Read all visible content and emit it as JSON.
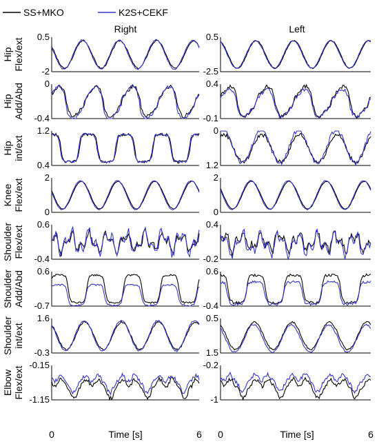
{
  "legend": {
    "entries": [
      {
        "label": "SS+MKO",
        "color": "#000000"
      },
      {
        "label": "K2S+CEKF",
        "color": "#3333cc"
      }
    ],
    "placement": "top-left"
  },
  "columns": [
    "Right",
    "Left"
  ],
  "xaxis": {
    "label": "Time [s]",
    "range": [
      0,
      6
    ],
    "ticks": [
      "0",
      "6"
    ]
  },
  "chart_data": {
    "type": "line",
    "x_range": [
      0,
      6
    ],
    "series_names": [
      "SS+MKO",
      "K2S+CEKF"
    ],
    "grid": false,
    "panels": [
      {
        "row_label": [
          "Hip",
          "Flex/ext"
        ],
        "column": "Right",
        "ylim": [
          -2,
          0.5
        ],
        "tick_top": "0.5",
        "tick_bottom": "-2",
        "cycles": 4,
        "phase": 0.8,
        "shape": "sine",
        "offset_b": 0.0,
        "amp_scale_b": 1.05,
        "noise": 0.04
      },
      {
        "row_label": [
          "Hip",
          "Flex/ext"
        ],
        "column": "Left",
        "ylim": [
          -2.5,
          0.5
        ],
        "tick_top": "0.5",
        "tick_bottom": "-2.5",
        "cycles": 4,
        "phase": 0.6,
        "shape": "sine",
        "offset_b": 0.0,
        "amp_scale_b": 1.0,
        "noise": 0.03
      },
      {
        "row_label": [
          "Hip",
          "Add/Abd"
        ],
        "column": "Right",
        "ylim": [
          -0.4,
          0
        ],
        "tick_top": "0",
        "tick_bottom": "-0.4",
        "cycles": 4,
        "phase": 0.2,
        "shape": "peaky",
        "offset_b": -0.05,
        "amp_scale_b": 1.1,
        "noise": 0.1
      },
      {
        "row_label": [
          "Hip",
          "Add/Abd"
        ],
        "column": "Left",
        "ylim": [
          -0.1,
          0.4
        ],
        "tick_top": "0.4",
        "tick_bottom": "-0.1",
        "cycles": 4,
        "phase": 0.1,
        "shape": "peaky",
        "offset_b": -0.05,
        "amp_scale_b": 0.9,
        "noise": 0.1
      },
      {
        "row_label": [
          "Hip",
          "int/ext"
        ],
        "column": "Right",
        "ylim": [
          0.4,
          1.2
        ],
        "tick_top": "1.2",
        "tick_bottom": "0.4",
        "cycles": 4,
        "phase": 0.5,
        "shape": "square",
        "offset_b": 0.0,
        "amp_scale_b": 1.0,
        "noise": 0.08
      },
      {
        "row_label": [
          "Hip",
          "int/ext"
        ],
        "column": "Left",
        "ylim": [
          1.2,
          0
        ],
        "tick_top": "0",
        "tick_bottom": "1.2",
        "cycles": 4,
        "phase": 0.3,
        "shape": "sine",
        "offset_b": 0.05,
        "amp_scale_b": 1.2,
        "noise": 0.12
      },
      {
        "row_label": [
          "Knee",
          "Flex/ext"
        ],
        "column": "Right",
        "ylim": [
          0,
          2
        ],
        "tick_top": "2",
        "tick_bottom": "0",
        "cycles": 4,
        "phase": 0.9,
        "shape": "sine",
        "offset_b": 0.0,
        "amp_scale_b": 1.05,
        "noise": 0.02
      },
      {
        "row_label": [
          "Knee",
          "Flex/ext"
        ],
        "column": "Left",
        "ylim": [
          0,
          2
        ],
        "tick_top": "2",
        "tick_bottom": "0",
        "cycles": 4,
        "phase": 0.85,
        "shape": "sine",
        "offset_b": 0.0,
        "amp_scale_b": 1.05,
        "noise": 0.02
      },
      {
        "row_label": [
          "Shoulder",
          "Flex/ext"
        ],
        "column": "Right",
        "ylim": [
          -0.4,
          0.6
        ],
        "tick_top": "0.6",
        "tick_bottom": "-0.4",
        "cycles": 8,
        "phase": 0.4,
        "shape": "weak",
        "offset_b": 0.0,
        "amp_scale_b": 1.2,
        "noise": 0.18
      },
      {
        "row_label": [
          "Shoulder",
          "Flex/ext"
        ],
        "column": "Left",
        "ylim": [
          -0.2,
          0.4
        ],
        "tick_top": "0.4",
        "tick_bottom": "-0.2",
        "cycles": 8,
        "phase": 0.2,
        "shape": "weak",
        "offset_b": -0.05,
        "amp_scale_b": 1.2,
        "noise": 0.2
      },
      {
        "row_label": [
          "Shoulder",
          "Add/Abd"
        ],
        "column": "Right",
        "ylim": [
          -0.7,
          0.6
        ],
        "tick_top": "0.6",
        "tick_bottom": "-0.7",
        "cycles": 4,
        "phase": 0.1,
        "shape": "square",
        "offset_b": -0.18,
        "amp_scale_b": 0.75,
        "noise": 0.05
      },
      {
        "row_label": [
          "Shoulder",
          "Add/Abd"
        ],
        "column": "Left",
        "ylim": [
          -0.4,
          0.6
        ],
        "tick_top": "0.6",
        "tick_bottom": "-0.4",
        "cycles": 4,
        "phase": 0.6,
        "shape": "square",
        "offset_b": -0.12,
        "amp_scale_b": 0.8,
        "noise": 0.08
      },
      {
        "row_label": [
          "Shoulder",
          "int/ext"
        ],
        "column": "Right",
        "ylim": [
          -0.3,
          1.6
        ],
        "tick_top": "1.6",
        "tick_bottom": "-0.3",
        "cycles": 4,
        "phase": 0.7,
        "shape": "sine",
        "offset_b": 0.0,
        "amp_scale_b": 1.1,
        "noise": 0.05
      },
      {
        "row_label": [
          "Shoulder",
          "int/ext"
        ],
        "column": "Left",
        "ylim": [
          1.5,
          0.5
        ],
        "tick_top": "0.5",
        "tick_bottom": "1.5",
        "cycles": 4,
        "phase": 0.7,
        "shape": "sine",
        "offset_b": -0.08,
        "amp_scale_b": 1.0,
        "noise": 0.05
      },
      {
        "row_label": [
          "Elbow",
          "Flex/ext"
        ],
        "column": "Right",
        "ylim": [
          -1.15,
          -0.15
        ],
        "tick_top": "-0.15",
        "tick_bottom": "-1.15",
        "cycles": 4,
        "phase": 0.3,
        "shape": "dips",
        "offset_b": 0.12,
        "amp_scale_b": 0.9,
        "noise": 0.12
      },
      {
        "row_label": [
          "Elbow",
          "Flex/ext"
        ],
        "column": "Left",
        "ylim": [
          -1,
          -0.2
        ],
        "tick_top": "-0.2",
        "tick_bottom": "-1",
        "cycles": 4,
        "phase": 0.3,
        "shape": "dips",
        "offset_b": 0.15,
        "amp_scale_b": 0.9,
        "noise": 0.12
      }
    ]
  }
}
